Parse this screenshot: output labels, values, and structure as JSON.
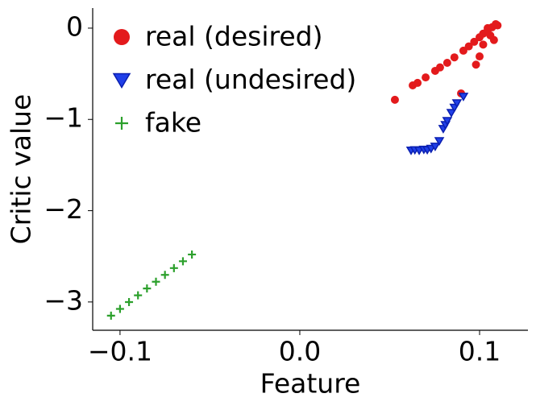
{
  "chart_data": {
    "type": "scatter",
    "x_label": "Feature",
    "y_label": "Critic value",
    "xlim": [
      -0.1152,
      0.1269
    ],
    "ylim": [
      -3.31,
      0.22
    ],
    "xticks": [
      {
        "value": -0.1,
        "label": "−0.1"
      },
      {
        "value": 0.0,
        "label": "0.0"
      },
      {
        "value": 0.1,
        "label": "0.1"
      }
    ],
    "yticks": [
      0,
      {
        "value": -1,
        "label": "−1"
      },
      {
        "value": -2,
        "label": "−2"
      },
      {
        "value": -3,
        "label": "−3"
      }
    ],
    "legend": "upper left",
    "series": [
      {
        "name": "real (desired)",
        "color": "#e31a1c",
        "marker": "circle",
        "x": [
          0.0529,
          0.0628,
          0.0655,
          0.07,
          0.0753,
          0.078,
          0.082,
          0.086,
          0.0897,
          0.091,
          0.094,
          0.097,
          0.1,
          0.102,
          0.1045,
          0.107,
          0.109,
          0.11,
          0.1045,
          0.102,
          0.1,
          0.098,
          0.106,
          0.108
        ],
        "values": [
          -0.785,
          -0.627,
          -0.6,
          -0.54,
          -0.468,
          -0.43,
          -0.38,
          -0.32,
          -0.715,
          -0.247,
          -0.2,
          -0.15,
          -0.1,
          -0.06,
          -0.02,
          0.01,
          0.044,
          0.03,
          0.0,
          -0.18,
          -0.31,
          -0.4,
          -0.08,
          -0.13
        ]
      },
      {
        "name": "real (undesired)",
        "color": "#1f3fe8",
        "marker": "triangle-down",
        "x": [
          0.0619,
          0.064,
          0.0664,
          0.069,
          0.0709,
          0.073,
          0.0753,
          0.0776,
          0.0798,
          0.081,
          0.082,
          0.0843,
          0.086,
          0.0874,
          0.091
        ],
        "values": [
          -1.34,
          -1.335,
          -1.34,
          -1.33,
          -1.333,
          -1.32,
          -1.297,
          -1.236,
          -1.103,
          -1.06,
          -1.015,
          -0.927,
          -0.87,
          -0.821,
          -0.75
        ]
      },
      {
        "name": "fake",
        "color": "#2ca02c",
        "marker": "plus",
        "x": [
          -0.105,
          -0.1,
          -0.095,
          -0.09,
          -0.085,
          -0.08,
          -0.075,
          -0.07,
          -0.065,
          -0.06
        ],
        "values": [
          -3.15,
          -3.076,
          -3.001,
          -2.927,
          -2.852,
          -2.778,
          -2.703,
          -2.629,
          -2.554,
          -2.48
        ]
      }
    ]
  }
}
